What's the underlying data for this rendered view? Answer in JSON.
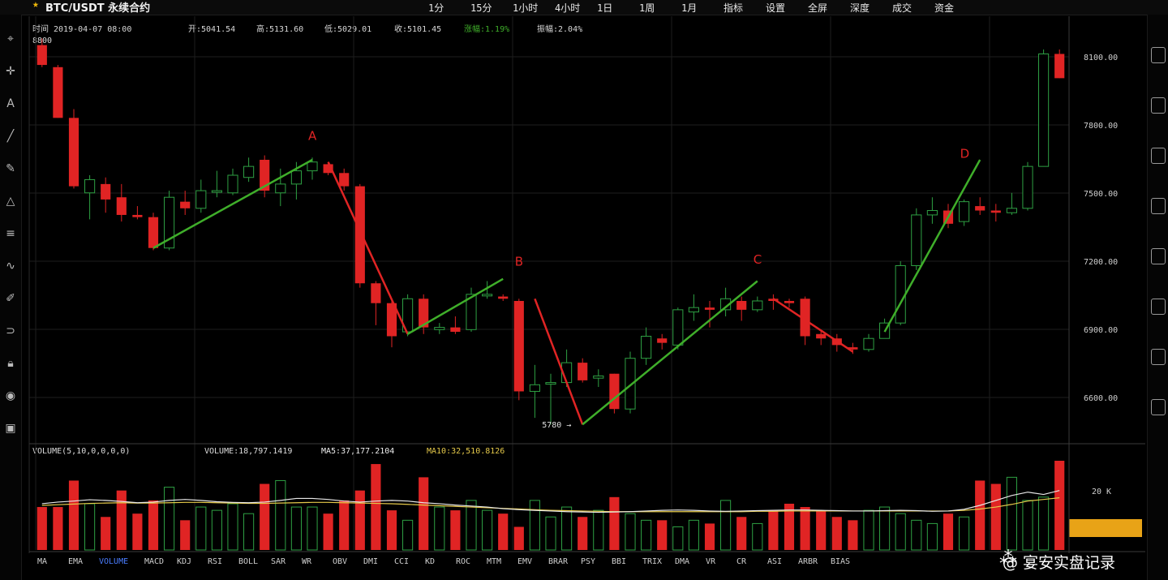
{
  "header": {
    "symbol": "BTC/USDT 永续合约",
    "menu": [
      "1分",
      "15分",
      "1小时",
      "4小时",
      "1日",
      "1周",
      "1月",
      "指标",
      "设置",
      "全屏",
      "深度",
      "成交",
      "资金"
    ],
    "ohlc": {
      "time": "时间 2019-04-07 08:00",
      "open": "开:5041.54",
      "high": "高:5131.60",
      "low": "低:5029.01",
      "close": "收:5101.45",
      "change": "涨幅:1.19%",
      "amplitude": "振幅:2.04%"
    },
    "top_left_price": "8800"
  },
  "volume_info": {
    "title": "VOLUME(5,10,0,0,0,0)",
    "volume": "VOLUME:18,797.1419",
    "ma5": "MA5:37,177.2104",
    "ma10": "MA10:32,510.8126"
  },
  "price_axis_labels": [
    "8100.00",
    "7800.00",
    "7500.00",
    "7200.00",
    "6900.00",
    "6600.00"
  ],
  "volume_axis_label": "20 K",
  "low_marker": "5780",
  "wave_labels": [
    "A",
    "B",
    "C",
    "D"
  ],
  "x_ticks": [
    "MA",
    "EMA",
    "VOLUME",
    "MACD",
    "KDJ",
    "RSI",
    "BOLL",
    "SAR",
    "WR",
    "OBV",
    "DMI",
    "CCI",
    "KD",
    "ROC",
    "MTM",
    "EMV",
    "BRAR",
    "PSY",
    "BBI",
    "TRIX",
    "DMA",
    "VR",
    "CR",
    "ASI",
    "ARBR",
    "BIAS"
  ],
  "watermark": "@ 宴安实盘记录",
  "colors": {
    "up": "#2ea043",
    "down": "#e02424",
    "wave": "#3fae2a",
    "ma5": "#e8e8e8",
    "ma10": "#e5c94a"
  },
  "chart_data": {
    "type": "candlestick",
    "ylim": [
      6450,
      8300
    ],
    "candles": [
      {
        "o": 8250,
        "h": 8280,
        "l": 8150,
        "c": 8160
      },
      {
        "o": 8150,
        "h": 8160,
        "l": 7920,
        "c": 7920
      },
      {
        "o": 7920,
        "h": 7960,
        "l": 7600,
        "c": 7610
      },
      {
        "o": 7580,
        "h": 7660,
        "l": 7460,
        "c": 7640
      },
      {
        "o": 7620,
        "h": 7650,
        "l": 7490,
        "c": 7550
      },
      {
        "o": 7560,
        "h": 7620,
        "l": 7450,
        "c": 7480
      },
      {
        "o": 7480,
        "h": 7520,
        "l": 7460,
        "c": 7470
      },
      {
        "o": 7470,
        "h": 7490,
        "l": 7320,
        "c": 7330
      },
      {
        "o": 7330,
        "h": 7590,
        "l": 7320,
        "c": 7560
      },
      {
        "o": 7540,
        "h": 7590,
        "l": 7480,
        "c": 7510
      },
      {
        "o": 7510,
        "h": 7640,
        "l": 7490,
        "c": 7590
      },
      {
        "o": 7590,
        "h": 7680,
        "l": 7560,
        "c": 7590
      },
      {
        "o": 7580,
        "h": 7690,
        "l": 7570,
        "c": 7660
      },
      {
        "o": 7650,
        "h": 7740,
        "l": 7630,
        "c": 7700
      },
      {
        "o": 7730,
        "h": 7750,
        "l": 7560,
        "c": 7590
      },
      {
        "o": 7580,
        "h": 7690,
        "l": 7520,
        "c": 7620
      },
      {
        "o": 7620,
        "h": 7720,
        "l": 7550,
        "c": 7680
      },
      {
        "o": 7680,
        "h": 7740,
        "l": 7640,
        "c": 7720
      },
      {
        "o": 7710,
        "h": 7720,
        "l": 7660,
        "c": 7670
      },
      {
        "o": 7670,
        "h": 7690,
        "l": 7590,
        "c": 7610
      },
      {
        "o": 7610,
        "h": 7620,
        "l": 7150,
        "c": 7170
      },
      {
        "o": 7170,
        "h": 7180,
        "l": 6980,
        "c": 7080
      },
      {
        "o": 7080,
        "h": 7100,
        "l": 6880,
        "c": 6930
      },
      {
        "o": 6950,
        "h": 7120,
        "l": 6930,
        "c": 7100
      },
      {
        "o": 7100,
        "h": 7120,
        "l": 6940,
        "c": 6970
      },
      {
        "o": 6960,
        "h": 6990,
        "l": 6940,
        "c": 6970
      },
      {
        "o": 6970,
        "h": 7020,
        "l": 6940,
        "c": 6950
      },
      {
        "o": 6960,
        "h": 7150,
        "l": 6950,
        "c": 7120
      },
      {
        "o": 7120,
        "h": 7180,
        "l": 7100,
        "c": 7120
      },
      {
        "o": 7110,
        "h": 7120,
        "l": 7090,
        "c": 7100
      },
      {
        "o": 7090,
        "h": 7100,
        "l": 6640,
        "c": 6680
      },
      {
        "o": 6680,
        "h": 6800,
        "l": 6560,
        "c": 6710
      },
      {
        "o": 6720,
        "h": 6760,
        "l": 6530,
        "c": 6720
      },
      {
        "o": 6720,
        "h": 6870,
        "l": 6700,
        "c": 6810
      },
      {
        "o": 6810,
        "h": 6830,
        "l": 6720,
        "c": 6730
      },
      {
        "o": 6740,
        "h": 6780,
        "l": 6700,
        "c": 6750
      },
      {
        "o": 6760,
        "h": 6760,
        "l": 6580,
        "c": 6600
      },
      {
        "o": 6600,
        "h": 6860,
        "l": 6580,
        "c": 6830
      },
      {
        "o": 6830,
        "h": 6970,
        "l": 6800,
        "c": 6930
      },
      {
        "o": 6920,
        "h": 6940,
        "l": 6870,
        "c": 6900
      },
      {
        "o": 6890,
        "h": 7060,
        "l": 6870,
        "c": 7050
      },
      {
        "o": 7040,
        "h": 7120,
        "l": 7000,
        "c": 7060
      },
      {
        "o": 7060,
        "h": 7090,
        "l": 6970,
        "c": 7050
      },
      {
        "o": 7050,
        "h": 7150,
        "l": 7020,
        "c": 7100
      },
      {
        "o": 7090,
        "h": 7110,
        "l": 7000,
        "c": 7050
      },
      {
        "o": 7050,
        "h": 7110,
        "l": 7040,
        "c": 7090
      },
      {
        "o": 7100,
        "h": 7120,
        "l": 7050,
        "c": 7090
      },
      {
        "o": 7090,
        "h": 7100,
        "l": 7060,
        "c": 7080
      },
      {
        "o": 7100,
        "h": 7110,
        "l": 6890,
        "c": 6930
      },
      {
        "o": 6940,
        "h": 6960,
        "l": 6890,
        "c": 6920
      },
      {
        "o": 6920,
        "h": 6940,
        "l": 6860,
        "c": 6890
      },
      {
        "o": 6880,
        "h": 6900,
        "l": 6850,
        "c": 6870
      },
      {
        "o": 6870,
        "h": 6940,
        "l": 6860,
        "c": 6920
      },
      {
        "o": 6920,
        "h": 7010,
        "l": 6920,
        "c": 6990
      },
      {
        "o": 6990,
        "h": 7270,
        "l": 6980,
        "c": 7250
      },
      {
        "o": 7250,
        "h": 7510,
        "l": 7230,
        "c": 7480
      },
      {
        "o": 7480,
        "h": 7560,
        "l": 7440,
        "c": 7500
      },
      {
        "o": 7500,
        "h": 7530,
        "l": 7420,
        "c": 7440
      },
      {
        "o": 7450,
        "h": 7550,
        "l": 7430,
        "c": 7540
      },
      {
        "o": 7520,
        "h": 7560,
        "l": 7480,
        "c": 7500
      },
      {
        "o": 7500,
        "h": 7530,
        "l": 7450,
        "c": 7490
      },
      {
        "o": 7490,
        "h": 7580,
        "l": 7480,
        "c": 7510
      },
      {
        "o": 7510,
        "h": 7720,
        "l": 7500,
        "c": 7700
      },
      {
        "o": 7700,
        "h": 8230,
        "l": 7700,
        "c": 8210
      },
      {
        "o": 8210,
        "h": 8230,
        "l": 8100,
        "c": 8100
      }
    ],
    "volume": [
      13,
      13,
      21,
      14,
      10,
      18,
      11,
      15,
      19,
      9,
      13,
      12,
      14,
      11,
      20,
      21,
      13,
      13,
      11,
      15,
      18,
      26,
      12,
      9,
      22,
      13,
      12,
      15,
      12,
      11,
      7,
      15,
      10,
      13,
      10,
      12,
      16,
      11,
      9,
      9,
      7,
      9,
      8,
      15,
      10,
      8,
      12,
      14,
      13,
      12,
      10,
      9,
      12,
      13,
      11,
      9,
      8,
      11,
      10,
      21,
      20,
      22,
      15,
      16,
      27
    ],
    "ma5": [
      14,
      14.5,
      14.8,
      15.2,
      15,
      14.7,
      14.3,
      14.5,
      15,
      15.3,
      15,
      14.6,
      14.4,
      14.3,
      14.5,
      15,
      15.6,
      15.6,
      15.3,
      14.8,
      14.5,
      14.8,
      15,
      14.8,
      14.3,
      14,
      13.6,
      13.3,
      13,
      12.5,
      12.2,
      12,
      11.8,
      11.6,
      11.5,
      11.4,
      11.5,
      11.6,
      11.8,
      12,
      12.1,
      12,
      11.8,
      11.7,
      11.8,
      11.9,
      12,
      12.1,
      12.1,
      12,
      11.9,
      11.8,
      11.8,
      11.9,
      12,
      11.9,
      11.7,
      11.8,
      12.3,
      13.5,
      15,
      16.5,
      17.5,
      16.8,
      18
    ],
    "ma10": [
      13.5,
      13.7,
      13.9,
      14.1,
      14.2,
      14.3,
      14.2,
      14.2,
      14.3,
      14.4,
      14.4,
      14.3,
      14.2,
      14.1,
      14.1,
      14.2,
      14.3,
      14.4,
      14.4,
      14.3,
      14.2,
      14.1,
      14,
      13.8,
      13.6,
      13.4,
      13.2,
      13,
      12.8,
      12.6,
      12.4,
      12.2,
      12,
      11.9,
      11.8,
      11.7,
      11.6,
      11.6,
      11.6,
      11.6,
      11.6,
      11.6,
      11.6,
      11.6,
      11.6,
      11.7,
      11.7,
      11.8,
      11.8,
      11.8,
      11.8,
      11.8,
      11.8,
      11.8,
      11.8,
      11.8,
      11.8,
      11.8,
      12,
      12.4,
      13,
      13.8,
      14.8,
      15.3,
      15.8
    ],
    "volume_ylim": [
      0,
      27
    ],
    "wave_lines": [
      {
        "name": "up-wave-1",
        "start": [
          7,
          7330
        ],
        "end": [
          17,
          7730
        ],
        "color": "up"
      },
      {
        "name": "down-wave-1",
        "start": [
          18,
          7720
        ],
        "end": [
          23,
          6940
        ],
        "color": "down"
      },
      {
        "name": "up-wave-2",
        "start": [
          23,
          6940
        ],
        "end": [
          29,
          7190
        ],
        "color": "up"
      },
      {
        "name": "down-wave-2",
        "start": [
          31,
          7100
        ],
        "end": [
          34,
          6530
        ],
        "color": "down"
      },
      {
        "name": "up-wave-3",
        "start": [
          34,
          6530
        ],
        "end": [
          45,
          7180
        ],
        "color": "up"
      },
      {
        "name": "down-wave-3",
        "start": [
          46,
          7100
        ],
        "end": [
          51,
          6860
        ],
        "color": "down"
      },
      {
        "name": "up-wave-4",
        "start": [
          53,
          6950
        ],
        "end": [
          59,
          7730
        ],
        "color": "up"
      }
    ],
    "wave_label_points": [
      [
        17,
        7820
      ],
      [
        30,
        7250
      ],
      [
        45,
        7260
      ],
      [
        58,
        7740
      ]
    ]
  }
}
